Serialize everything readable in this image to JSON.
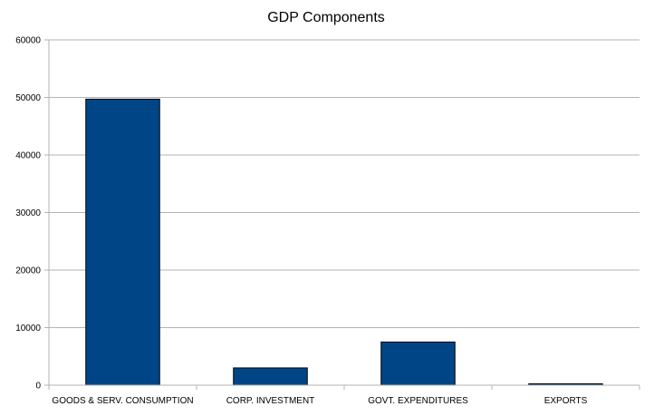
{
  "chart_data": {
    "type": "bar",
    "title": "GDP Components",
    "xlabel": "",
    "ylabel": "",
    "categories": [
      "GOODS & SERV. CONSUMPTION",
      "CORP. INVESTMENT",
      "GOVT. EXPENDITURES",
      "EXPORTS"
    ],
    "values": [
      49700,
      3000,
      7500,
      150
    ],
    "ylim": [
      0,
      60000
    ],
    "yticks": [
      "0",
      "10000",
      "20000",
      "30000",
      "40000",
      "50000",
      "60000"
    ],
    "grid": true,
    "legend": "none",
    "colors": {
      "bar": "#004586",
      "bar_stroke": "#000000",
      "grid": "#b3b3b3",
      "axis": "#b3b3b3"
    }
  }
}
